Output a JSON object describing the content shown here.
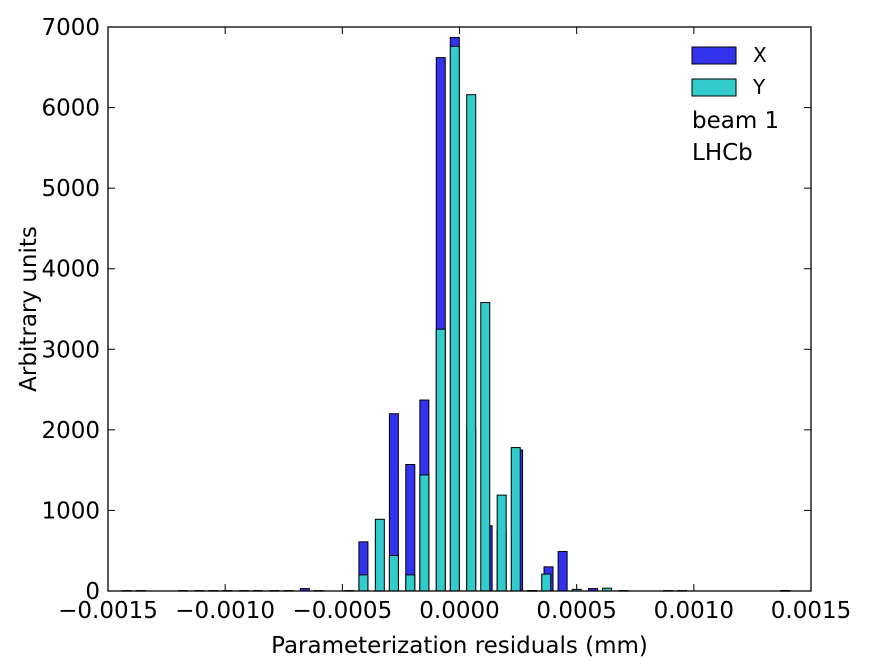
{
  "chart_data": {
    "type": "bar",
    "xlabel": "Parameterization residuals (mm)",
    "ylabel": "Arbitrary units",
    "xlim": [
      -0.0015,
      0.0015
    ],
    "ylim": [
      0,
      7000
    ],
    "xticks": [
      -0.0015,
      -0.001,
      -0.0005,
      0.0,
      0.0005,
      0.001,
      0.0015
    ],
    "xtick_labels": [
      "−0.0015",
      "−0.0010",
      "−0.0005",
      "0.0000",
      "0.0005",
      "0.0010",
      "0.0015"
    ],
    "yticks": [
      0,
      1000,
      2000,
      3000,
      4000,
      5000,
      6000,
      7000
    ],
    "ytick_labels": [
      "0",
      "1000",
      "2000",
      "3000",
      "4000",
      "5000",
      "6000",
      "7000"
    ],
    "legend_position": "top-right",
    "annotations": [
      "beam 1",
      "LHCb"
    ],
    "series": [
      {
        "name": "X",
        "color": "#3333ee",
        "x": [
          -0.00142,
          -0.00118,
          -0.00105,
          -0.00092,
          -0.00079,
          -0.00066,
          -0.00041,
          -0.00034,
          -0.00028,
          -0.00021,
          -0.00015,
          -8e-05,
          -2e-05,
          5e-05,
          0.00012,
          0.00018,
          0.00025,
          0.00031,
          0.00038,
          0.00044,
          0.00057,
          0.0007,
          0.00095,
          0.00139
        ],
        "values": [
          5,
          5,
          5,
          5,
          5,
          30,
          610,
          5,
          2200,
          1570,
          2370,
          6620,
          6870,
          2010,
          810,
          760,
          1750,
          5,
          300,
          490,
          30,
          5,
          5,
          5
        ]
      },
      {
        "name": "Y",
        "color": "#33cccc",
        "x": [
          -0.00136,
          -0.00111,
          -0.00099,
          -0.00086,
          -0.00073,
          -0.0006,
          -0.00047,
          -0.00041,
          -0.00034,
          -0.00028,
          -0.00021,
          -0.00015,
          -8e-05,
          -2e-05,
          5e-05,
          0.00011,
          0.00018,
          0.00024,
          0.00031,
          0.00037,
          0.0005,
          0.00063,
          0.00089,
          0.00139
        ],
        "values": [
          5,
          5,
          5,
          5,
          5,
          5,
          5,
          200,
          890,
          440,
          200,
          1440,
          3250,
          6760,
          6160,
          3580,
          1190,
          1780,
          5,
          210,
          20,
          35,
          5,
          5
        ]
      }
    ]
  }
}
